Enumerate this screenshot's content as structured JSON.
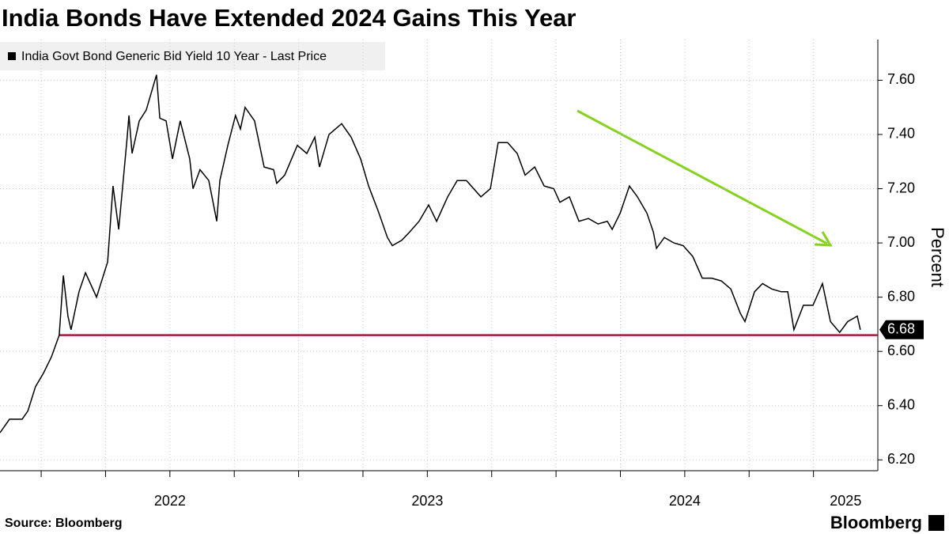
{
  "chart_data": {
    "type": "line",
    "title": "India Bonds Have Extended 2024 Gains This Year",
    "y_label": "Percent",
    "source": "Source: Bloomberg",
    "brand": "Bloomberg",
    "last_value_label": "6.68",
    "x": [
      2021.84,
      2021.877,
      2021.926,
      2021.948,
      2021.978,
      2022.009,
      2022.04,
      2022.07,
      2022.086,
      2022.104,
      2022.116,
      2022.147,
      2022.172,
      2022.215,
      2022.258,
      2022.279,
      2022.301,
      2022.332,
      2022.341,
      2022.353,
      2022.381,
      2022.408,
      2022.448,
      2022.461,
      2022.485,
      2022.51,
      2022.54,
      2022.577,
      2022.59,
      2022.617,
      2022.651,
      2022.682,
      2022.694,
      2022.725,
      2022.755,
      2022.774,
      2022.792,
      2022.829,
      2022.866,
      2022.903,
      2022.915,
      2022.946,
      2022.995,
      2023.032,
      2023.063,
      2023.081,
      2023.118,
      2023.167,
      2023.204,
      2023.241,
      2023.272,
      2023.308,
      2023.345,
      2023.364,
      2023.401,
      2023.431,
      2023.468,
      2023.505,
      2023.536,
      2023.579,
      2023.616,
      2023.652,
      2023.708,
      2023.745,
      2023.775,
      2023.812,
      2023.849,
      2023.88,
      2023.917,
      2023.954,
      2023.991,
      2024.015,
      2024.052,
      2024.089,
      2024.126,
      2024.163,
      2024.199,
      2024.218,
      2024.249,
      2024.285,
      2024.316,
      2024.353,
      2024.378,
      2024.39,
      2024.421,
      2024.458,
      2024.494,
      2024.531,
      2024.568,
      2024.605,
      2024.642,
      2024.679,
      2024.716,
      2024.734,
      2024.771,
      2024.802,
      2024.838,
      2024.875,
      2024.9,
      2024.924,
      2024.961,
      2024.998,
      2025.035,
      2025.066,
      2025.102,
      2025.133,
      2025.17,
      2025.182
    ],
    "series": [
      {
        "name": "India Govt Bond Generic Bid Yield 10 Year - Last Price",
        "color": "#000000",
        "values": [
          6.3,
          6.35,
          6.35,
          6.38,
          6.47,
          6.52,
          6.58,
          6.66,
          6.88,
          6.73,
          6.68,
          6.82,
          6.89,
          6.8,
          6.93,
          7.21,
          7.05,
          7.37,
          7.47,
          7.33,
          7.45,
          7.49,
          7.62,
          7.46,
          7.45,
          7.31,
          7.45,
          7.31,
          7.2,
          7.27,
          7.23,
          7.08,
          7.23,
          7.36,
          7.47,
          7.42,
          7.5,
          7.45,
          7.28,
          7.27,
          7.22,
          7.25,
          7.36,
          7.33,
          7.39,
          7.28,
          7.4,
          7.44,
          7.39,
          7.31,
          7.21,
          7.12,
          7.02,
          6.99,
          7.01,
          7.04,
          7.08,
          7.14,
          7.08,
          7.17,
          7.23,
          7.23,
          7.17,
          7.2,
          7.37,
          7.37,
          7.33,
          7.25,
          7.28,
          7.21,
          7.2,
          7.15,
          7.17,
          7.08,
          7.09,
          7.07,
          7.08,
          7.05,
          7.11,
          7.21,
          7.17,
          7.11,
          7.04,
          6.98,
          7.02,
          7.0,
          6.99,
          6.95,
          6.87,
          6.87,
          6.86,
          6.83,
          6.74,
          6.71,
          6.82,
          6.85,
          6.83,
          6.82,
          6.82,
          6.68,
          6.77,
          6.77,
          6.85,
          6.71,
          6.67,
          6.71,
          6.73,
          6.68
        ]
      }
    ],
    "xlim": [
      2021.84,
      2025.25
    ],
    "xticks": [
      {
        "value": 2022.5,
        "label": "2022"
      },
      {
        "value": 2023.5,
        "label": "2023"
      },
      {
        "value": 2024.5,
        "label": "2024"
      },
      {
        "value": 2025.125,
        "label": "2025"
      }
    ],
    "xgrid": [
      2022,
      2022.25,
      2022.5,
      2022.75,
      2023,
      2023.25,
      2023.5,
      2023.75,
      2024,
      2024.25,
      2024.5,
      2024.75,
      2025
    ],
    "ylim": [
      6.16,
      7.75
    ],
    "yticks": [
      {
        "value": 6.2,
        "label": "6.20"
      },
      {
        "value": 6.4,
        "label": "6.40"
      },
      {
        "value": 6.6,
        "label": "6.60"
      },
      {
        "value": 6.8,
        "label": "6.80"
      },
      {
        "value": 7.0,
        "label": "7.00"
      },
      {
        "value": 7.2,
        "label": "7.20"
      },
      {
        "value": 7.4,
        "label": "7.40"
      },
      {
        "value": 7.6,
        "label": "7.60"
      }
    ],
    "reference_line": {
      "value": 6.66,
      "start": 2022.07,
      "color": "#a8183c"
    },
    "grid": true
  }
}
